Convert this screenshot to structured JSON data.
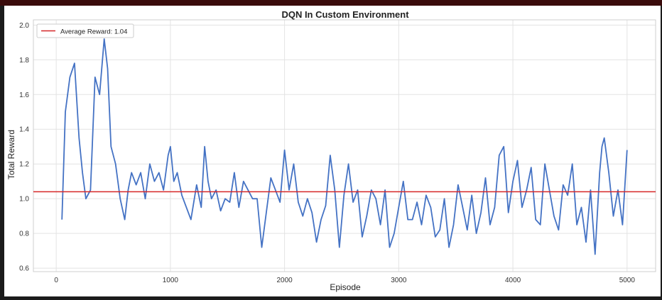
{
  "chart_data": {
    "type": "line",
    "title": "DQN In Custom Environment",
    "xlabel": "Episode",
    "ylabel": "Total Reward",
    "xlim": [
      -200,
      5250
    ],
    "ylim": [
      0.58,
      2.03
    ],
    "xticks": [
      0,
      1000,
      2000,
      3000,
      4000,
      5000
    ],
    "yticks": [
      0.6,
      0.8,
      1.0,
      1.2,
      1.4,
      1.6,
      1.8,
      2.0
    ],
    "xtick_labels": [
      "0",
      "1000",
      "2000",
      "3000",
      "4000",
      "5000"
    ],
    "ytick_labels": [
      "0.6",
      "0.8",
      "1.0",
      "1.2",
      "1.4",
      "1.6",
      "1.8",
      "2.0"
    ],
    "grid": true,
    "legend": {
      "placement": "top-left",
      "entries": [
        "Average Reward: 1.04"
      ]
    },
    "series": [
      {
        "name": "Total Reward",
        "color": "#4472c4",
        "x": [
          50,
          80,
          120,
          160,
          200,
          230,
          260,
          300,
          340,
          380,
          420,
          450,
          480,
          520,
          560,
          600,
          630,
          660,
          700,
          740,
          780,
          820,
          860,
          900,
          940,
          980,
          1000,
          1030,
          1060,
          1100,
          1140,
          1180,
          1230,
          1270,
          1300,
          1330,
          1360,
          1400,
          1440,
          1480,
          1520,
          1560,
          1600,
          1640,
          1680,
          1720,
          1760,
          1800,
          1840,
          1880,
          1920,
          1960,
          2000,
          2040,
          2080,
          2120,
          2160,
          2200,
          2240,
          2280,
          2320,
          2360,
          2400,
          2440,
          2480,
          2520,
          2560,
          2600,
          2640,
          2680,
          2720,
          2760,
          2800,
          2840,
          2880,
          2920,
          2960,
          3000,
          3040,
          3080,
          3120,
          3160,
          3200,
          3240,
          3280,
          3320,
          3360,
          3400,
          3440,
          3480,
          3520,
          3560,
          3600,
          3640,
          3680,
          3720,
          3760,
          3800,
          3840,
          3880,
          3920,
          3960,
          4000,
          4040,
          4080,
          4120,
          4160,
          4200,
          4240,
          4280,
          4320,
          4360,
          4400,
          4440,
          4480,
          4520,
          4560,
          4600,
          4640,
          4680,
          4720,
          4760,
          4780,
          4800,
          4840,
          4880,
          4920,
          4960,
          5000
        ],
        "y": [
          0.88,
          1.5,
          1.7,
          1.78,
          1.35,
          1.15,
          1.0,
          1.05,
          1.7,
          1.6,
          1.92,
          1.75,
          1.3,
          1.2,
          1.0,
          0.88,
          1.05,
          1.15,
          1.08,
          1.15,
          1.0,
          1.2,
          1.1,
          1.15,
          1.05,
          1.25,
          1.3,
          1.1,
          1.15,
          1.02,
          0.95,
          0.88,
          1.08,
          0.95,
          1.3,
          1.1,
          1.0,
          1.05,
          0.93,
          1.0,
          0.98,
          1.15,
          0.95,
          1.1,
          1.05,
          1.0,
          1.0,
          0.72,
          0.92,
          1.12,
          1.05,
          0.98,
          1.28,
          1.05,
          1.2,
          0.98,
          0.9,
          1.0,
          0.92,
          0.75,
          0.88,
          0.96,
          1.25,
          1.05,
          0.72,
          1.02,
          1.2,
          0.98,
          1.05,
          0.78,
          0.9,
          1.05,
          1.0,
          0.85,
          1.05,
          0.72,
          0.8,
          0.95,
          1.1,
          0.88,
          0.88,
          0.98,
          0.85,
          1.02,
          0.95,
          0.78,
          0.82,
          1.0,
          0.72,
          0.85,
          1.08,
          0.95,
          0.82,
          1.02,
          0.8,
          0.92,
          1.12,
          0.85,
          0.95,
          1.25,
          1.3,
          0.92,
          1.1,
          1.22,
          0.95,
          1.05,
          1.18,
          0.88,
          0.85,
          1.2,
          1.05,
          0.9,
          0.82,
          1.08,
          1.02,
          1.2,
          0.85,
          0.95,
          0.75,
          1.05,
          0.68,
          1.15,
          1.3,
          1.35,
          1.15,
          0.9,
          1.05,
          0.85,
          1.28
        ]
      }
    ],
    "reference_lines": [
      {
        "type": "horizontal",
        "y": 1.04,
        "color": "#d62728",
        "label": "Average Reward: 1.04"
      }
    ]
  }
}
